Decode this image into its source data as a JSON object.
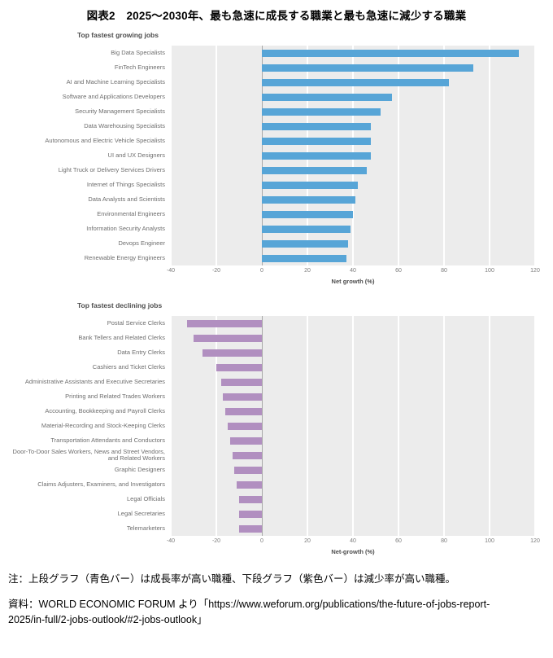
{
  "doc": {
    "title": "図表2　2025～2030年、最も急速に成長する職業と最も急速に減少する職業",
    "note": "注：上段グラフ（青色バー）は成長率が高い職種、下段グラフ（紫色バー）は減少率が高い職種。",
    "source_line1": "資料：WORLD ECONOMIC FORUM より「https://www.weforum.org/publications/the-future-of-jobs-report-",
    "source_line2": "2025/in-full/2-jobs-outlook/#2-jobs-outlook」"
  },
  "colors": {
    "growing_bar": "#57a5d7",
    "declining_bar": "#b18fc0",
    "plot_background": "#ececec"
  },
  "chart_data": [
    {
      "type": "bar",
      "orientation": "horizontal",
      "title": "Top fastest growing jobs",
      "xlabel": "Net growth (%)",
      "xlim": [
        -40,
        120
      ],
      "xticks": [
        -40,
        -20,
        0,
        20,
        40,
        60,
        80,
        100,
        120
      ],
      "bar_color": "#57a5d7",
      "grid": true,
      "categories": [
        "Big Data Specialists",
        "FinTech Engineers",
        "AI and Machine Learning Specialists",
        "Software and Applications Developers",
        "Security Management Specialists",
        "Data Warehousing Specialists",
        "Autonomous and Electric Vehicle Specialists",
        "UI and UX Designers",
        "Light Truck or Delivery Services Drivers",
        "Internet of Things Specialists",
        "Data Analysts and Scientists",
        "Environmental Engineers",
        "Information Security Analysts",
        "Devops Engineer",
        "Renewable Energy Engineers"
      ],
      "values": [
        113,
        93,
        82,
        57,
        52,
        48,
        48,
        48,
        46,
        42,
        41,
        40,
        39,
        38,
        37
      ]
    },
    {
      "type": "bar",
      "orientation": "horizontal",
      "title": "Top fastest declining jobs",
      "xlabel": "Net-growth (%)",
      "xlim": [
        -40,
        120
      ],
      "xticks": [
        -40,
        -20,
        0,
        20,
        40,
        60,
        80,
        100,
        120
      ],
      "bar_color": "#b18fc0",
      "grid": true,
      "categories": [
        "Postal Service Clerks",
        "Bank Tellers and Related Clerks",
        "Data Entry Clerks",
        "Cashiers and Ticket Clerks",
        "Administrative Assistants and Executive Secretaries",
        "Printing and Related Trades Workers",
        "Accounting, Bookkeeping and Payroll Clerks",
        "Material-Recording and Stock-Keeping Clerks",
        "Transportation Attendants and Conductors",
        "Door-To-Door Sales Workers, News and Street Vendors, and Related Workers",
        "Graphic Designers",
        "Claims Adjusters, Examiners, and Investigators",
        "Legal Officials",
        "Legal Secretaries",
        "Telemarketers"
      ],
      "values": [
        -33,
        -30,
        -26,
        -20,
        -18,
        -17,
        -16,
        -15,
        -14,
        -13,
        -12,
        -11,
        -10,
        -10,
        -10
      ]
    }
  ]
}
